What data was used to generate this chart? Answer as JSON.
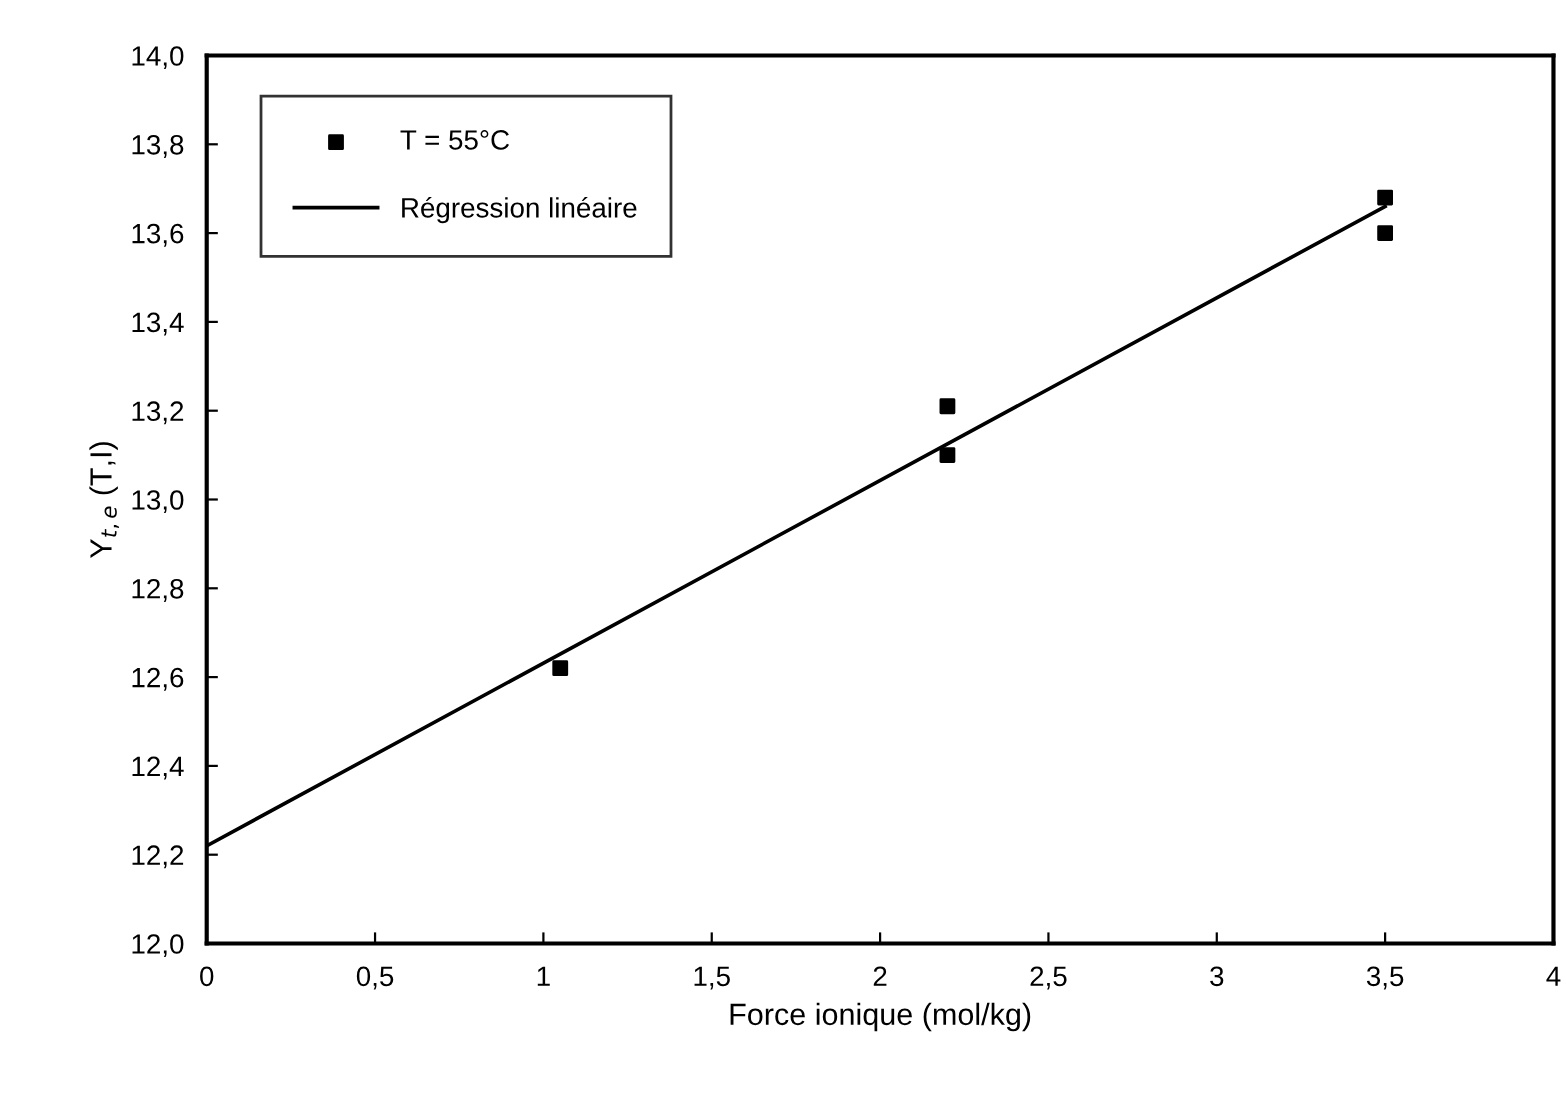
{
  "chart_data": {
    "type": "scatter",
    "xlabel": "Force ionique (mol/kg)",
    "ylabel": "Y$_{t,e}$ (T,I)",
    "x": [
      1.05,
      2.2,
      2.2,
      3.5,
      3.5
    ],
    "series": [
      {
        "name": "T = 55°C",
        "color": "#000000",
        "marker": "square",
        "values": [
          12.62,
          13.21,
          13.1,
          13.68,
          13.6
        ]
      },
      {
        "name": "Régression linéaire",
        "type": "line",
        "color": "#000000",
        "marker": "none",
        "line_style": "solid",
        "x": [
          0,
          3.5
        ],
        "values": [
          12.22,
          13.66
        ]
      }
    ],
    "xlim": [
      0,
      4
    ],
    "ylim": [
      12.0,
      14.0
    ],
    "xticks": [
      0,
      {
        "value": 0.5,
        "label": "0,5"
      },
      1,
      {
        "value": 1.5,
        "label": "1,5"
      },
      2,
      {
        "value": 2.5,
        "label": "2,5"
      },
      3,
      {
        "value": 3.5,
        "label": "3,5"
      },
      4
    ],
    "yticks": [
      {
        "value": 12.0,
        "label": "12,0"
      },
      {
        "value": 12.2,
        "label": "12,2"
      },
      {
        "value": 12.4,
        "label": "12,4"
      },
      {
        "value": 12.6,
        "label": "12,6"
      },
      {
        "value": 12.8,
        "label": "12,8"
      },
      {
        "value": 13.0,
        "label": "13,0"
      },
      {
        "value": 13.2,
        "label": "13,2"
      },
      {
        "value": 13.4,
        "label": "13,4"
      },
      {
        "value": 13.6,
        "label": "13,6"
      },
      {
        "value": 13.8,
        "label": "13,8"
      },
      {
        "value": 14.0,
        "label": "14,0"
      }
    ],
    "grid": false,
    "legend": "top left"
  }
}
